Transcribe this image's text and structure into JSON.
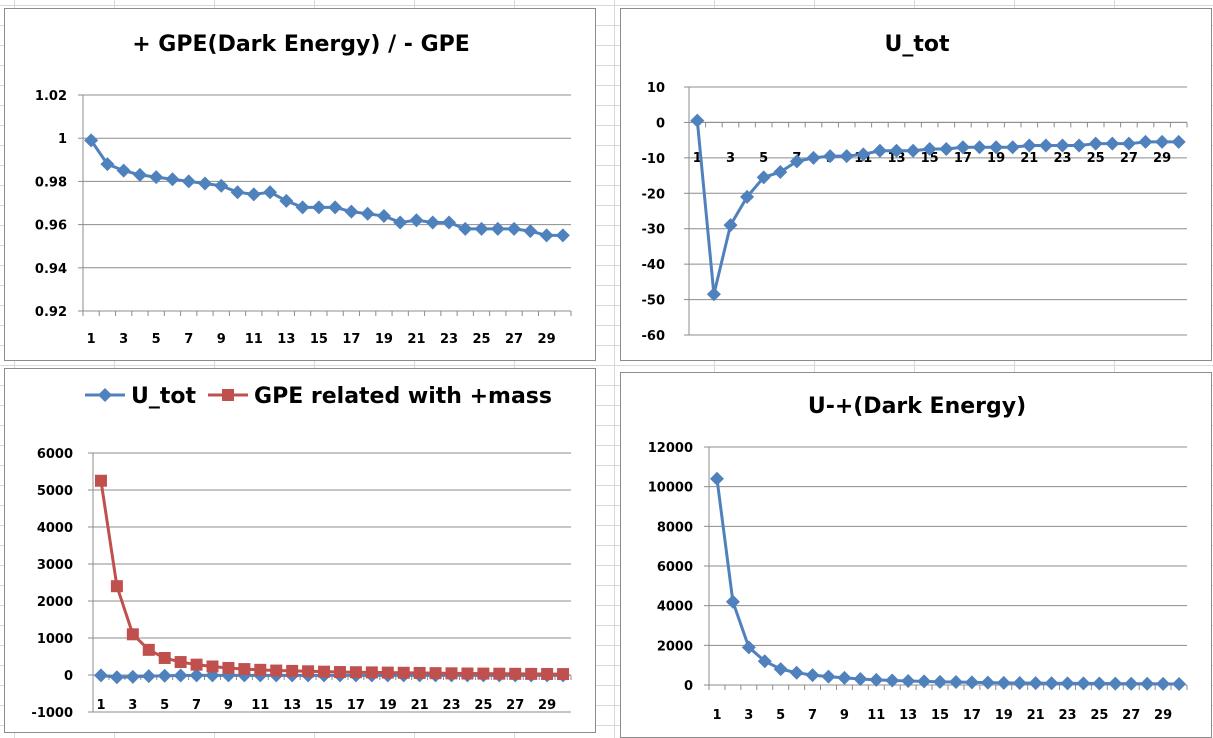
{
  "chart_data": [
    {
      "type": "line",
      "title": "+ GPE(Dark Energy) / - GPE",
      "x": [
        1,
        2,
        3,
        4,
        5,
        6,
        7,
        8,
        9,
        10,
        11,
        12,
        13,
        14,
        15,
        16,
        17,
        18,
        19,
        20,
        21,
        22,
        23,
        24,
        25,
        26,
        27,
        28,
        29,
        30
      ],
      "x_tick_labels": [
        "1",
        "3",
        "5",
        "7",
        "9",
        "11",
        "13",
        "15",
        "17",
        "19",
        "21",
        "23",
        "25",
        "27",
        "29"
      ],
      "y_tick_labels": [
        "1.02",
        "1",
        "0.98",
        "0.96",
        "0.94",
        "0.92"
      ],
      "ylim": [
        0.92,
        1.02
      ],
      "series": [
        {
          "color": "#4f81bd",
          "marker": "diamond",
          "values": [
            0.999,
            0.988,
            0.985,
            0.983,
            0.982,
            0.981,
            0.98,
            0.979,
            0.978,
            0.975,
            0.974,
            0.975,
            0.971,
            0.968,
            0.968,
            0.968,
            0.966,
            0.965,
            0.964,
            0.961,
            0.962,
            0.961,
            0.961,
            0.958,
            0.958,
            0.958,
            0.958,
            0.957,
            0.955,
            0.955
          ]
        }
      ],
      "grid": true,
      "legend": "none"
    },
    {
      "type": "line",
      "title": "U_tot",
      "x": [
        1,
        2,
        3,
        4,
        5,
        6,
        7,
        8,
        9,
        10,
        11,
        12,
        13,
        14,
        15,
        16,
        17,
        18,
        19,
        20,
        21,
        22,
        23,
        24,
        25,
        26,
        27,
        28,
        29,
        30
      ],
      "x_tick_labels": [
        "1",
        "3",
        "5",
        "7",
        "9",
        "11",
        "13",
        "15",
        "17",
        "19",
        "21",
        "23",
        "25",
        "27",
        "29"
      ],
      "y_tick_labels": [
        "10",
        "0",
        "-10",
        "-20",
        "-30",
        "-40",
        "-50",
        "-60"
      ],
      "ylim": [
        -60,
        10
      ],
      "series": [
        {
          "color": "#4f81bd",
          "marker": "diamond",
          "values": [
            0.5,
            -48.5,
            -29,
            -21,
            -15.5,
            -14,
            -11,
            -10,
            -9.5,
            -9.5,
            -9,
            -8,
            -8,
            -8,
            -7.5,
            -7.5,
            -7,
            -7,
            -7,
            -7,
            -6.5,
            -6.5,
            -6.5,
            -6.5,
            -6,
            -6,
            -6,
            -5.5,
            -5.5,
            -5.5
          ]
        }
      ],
      "grid": true,
      "legend": "none"
    },
    {
      "type": "line",
      "title": "",
      "x": [
        1,
        2,
        3,
        4,
        5,
        6,
        7,
        8,
        9,
        10,
        11,
        12,
        13,
        14,
        15,
        16,
        17,
        18,
        19,
        20,
        21,
        22,
        23,
        24,
        25,
        26,
        27,
        28,
        29,
        30
      ],
      "x_tick_labels": [
        "1",
        "3",
        "5",
        "7",
        "9",
        "11",
        "13",
        "15",
        "17",
        "19",
        "21",
        "23",
        "25",
        "27",
        "29"
      ],
      "y_tick_labels": [
        "6000",
        "5000",
        "4000",
        "3000",
        "2000",
        "1000",
        "0",
        "-1000"
      ],
      "ylim": [
        -1000,
        6000
      ],
      "series": [
        {
          "name": "U_tot",
          "color": "#4f81bd",
          "marker": "diamond",
          "values": [
            -10,
            -60,
            -50,
            -30,
            -20,
            -15,
            -10,
            -10,
            -10,
            -10,
            -10,
            -10,
            -10,
            -10,
            -10,
            -10,
            -10,
            -10,
            -10,
            -10,
            -10,
            -10,
            -10,
            -10,
            -10,
            -10,
            -10,
            -10,
            -10,
            -10
          ]
        },
        {
          "name": "GPE related with +mass",
          "color": "#c0504d",
          "marker": "square",
          "values": [
            5250,
            2400,
            1100,
            680,
            460,
            350,
            280,
            230,
            190,
            160,
            140,
            120,
            110,
            100,
            90,
            80,
            75,
            70,
            65,
            60,
            55,
            50,
            45,
            40,
            38,
            35,
            32,
            30,
            28,
            25
          ]
        }
      ],
      "grid": true,
      "legend": "top"
    },
    {
      "type": "line",
      "title": "U-+(Dark Energy)",
      "x": [
        1,
        2,
        3,
        4,
        5,
        6,
        7,
        8,
        9,
        10,
        11,
        12,
        13,
        14,
        15,
        16,
        17,
        18,
        19,
        20,
        21,
        22,
        23,
        24,
        25,
        26,
        27,
        28,
        29,
        30
      ],
      "x_tick_labels": [
        "1",
        "3",
        "5",
        "7",
        "9",
        "11",
        "13",
        "15",
        "17",
        "19",
        "21",
        "23",
        "25",
        "27",
        "29"
      ],
      "y_tick_labels": [
        "12000",
        "10000",
        "8000",
        "6000",
        "4000",
        "2000",
        "0"
      ],
      "ylim": [
        0,
        12000
      ],
      "series": [
        {
          "color": "#4f81bd",
          "marker": "diamond",
          "values": [
            10400,
            4200,
            1900,
            1200,
            800,
            620,
            500,
            420,
            360,
            300,
            260,
            230,
            200,
            180,
            160,
            150,
            135,
            120,
            110,
            100,
            95,
            90,
            85,
            80,
            75,
            70,
            65,
            60,
            55,
            50
          ]
        }
      ],
      "grid": true,
      "legend": "none"
    }
  ]
}
